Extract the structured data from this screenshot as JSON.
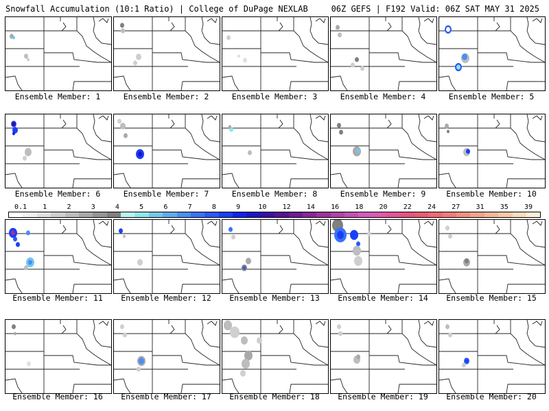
{
  "header": {
    "left": "Snowfall Accumulation (10:1 Ratio) | College of DuPage NEXLAB",
    "right": "06Z GEFS | F192 Valid: 06Z SAT MAY 31 2025"
  },
  "colorbar": {
    "labels": [
      "0.1",
      "1",
      "2",
      "3",
      "4",
      "5",
      "6",
      "7",
      "8",
      "9",
      "10",
      "12",
      "14",
      "16",
      "18",
      "20",
      "22",
      "24",
      "27",
      "31",
      "35",
      "39"
    ],
    "colors": [
      "#ffffff",
      "#f1f1f1",
      "#e1e1e1",
      "#cfcfcf",
      "#bdbdbd",
      "#a9a9a9",
      "#959595",
      "#808080",
      "#b9f2f2",
      "#8fe6ea",
      "#74c7ec",
      "#60aaf0",
      "#4b8ef4",
      "#3a72f7",
      "#2958f8",
      "#1a3ef7",
      "#0f22ee",
      "#1c14c8",
      "#3a0fa8",
      "#551491",
      "#6e1b94",
      "#862798",
      "#9c339c",
      "#b042a5",
      "#c24fb1",
      "#d35bbc",
      "#de5aae",
      "#e35597",
      "#e8527f",
      "#ec5a72",
      "#ef6a72",
      "#f07c78",
      "#f2907e",
      "#f4a487",
      "#f6b795",
      "#f8c9a5",
      "#faddbd",
      "#fcefdb"
    ]
  },
  "panels": [
    {
      "label": "Ensemble Member: 1",
      "blobs": [
        [
          9,
          28,
          3,
          "#a9a9a9"
        ],
        [
          12,
          30,
          2,
          "#74c7ec"
        ],
        [
          30,
          57,
          3,
          "#bdbdbd"
        ],
        [
          33,
          62,
          2,
          "#cfcfcf"
        ]
      ]
    },
    {
      "label": "Ensemble Member: 2",
      "blobs": [
        [
          12,
          12,
          3,
          "#808080"
        ],
        [
          13,
          20,
          3,
          "#bdbdbd"
        ],
        [
          36,
          58,
          4,
          "#cfcfcf"
        ],
        [
          31,
          67,
          3,
          "#cfcfcf"
        ]
      ]
    },
    {
      "label": "Ensemble Member: 3",
      "blobs": [
        [
          9,
          30,
          3,
          "#cfcfcf"
        ],
        [
          33,
          63,
          3,
          "#e1e1e1"
        ],
        [
          24,
          57,
          2,
          "#e1e1e1"
        ]
      ]
    },
    {
      "label": "Ensemble Member: 4",
      "blobs": [
        [
          10,
          15,
          3,
          "#a9a9a9"
        ],
        [
          13,
          26,
          3,
          "#bdbdbd"
        ],
        [
          38,
          62,
          3,
          "#808080"
        ],
        [
          32,
          70,
          3,
          "#cfcfcf"
        ],
        [
          46,
          75,
          3,
          "#cfcfcf"
        ]
      ]
    },
    {
      "label": "Ensemble Member: 5",
      "blobs": [
        [
          13,
          18,
          5,
          "#2958f8"
        ],
        [
          13,
          18,
          3,
          "#ffffff"
        ],
        [
          38,
          60,
          6,
          "#bdbdbd"
        ],
        [
          37,
          58,
          4,
          "#4b8ef4"
        ],
        [
          28,
          73,
          5,
          "#2958f8"
        ],
        [
          28,
          73,
          3,
          "#8fe6ea"
        ]
      ]
    },
    {
      "label": "Ensemble Member: 6",
      "blobs": [
        [
          12,
          14,
          4,
          "#2958f8"
        ],
        [
          12,
          14,
          3,
          "#3a0fa8"
        ],
        [
          14,
          23,
          4,
          "#1a3ef7"
        ],
        [
          12,
          28,
          2,
          "#0f22ee"
        ],
        [
          33,
          55,
          5,
          "#bdbdbd"
        ],
        [
          28,
          64,
          3,
          "#cfcfcf"
        ]
      ]
    },
    {
      "label": "Ensemble Member: 7",
      "blobs": [
        [
          8,
          10,
          3,
          "#cfcfcf"
        ],
        [
          13,
          17,
          4,
          "#bdbdbd"
        ],
        [
          17,
          31,
          3,
          "#a9a9a9"
        ],
        [
          38,
          58,
          6,
          "#1a3ef7"
        ],
        [
          38,
          58,
          3,
          "#1c14c8"
        ]
      ]
    },
    {
      "label": "Ensemble Member: 8",
      "blobs": [
        [
          13,
          22,
          3,
          "#8fe6ea"
        ],
        [
          11,
          18,
          2,
          "#a9a9a9"
        ],
        [
          40,
          56,
          3,
          "#bdbdbd"
        ]
      ]
    },
    {
      "label": "Ensemble Member: 9",
      "blobs": [
        [
          12,
          16,
          3,
          "#808080"
        ],
        [
          15,
          26,
          3,
          "#808080"
        ],
        [
          38,
          54,
          6,
          "#a9a9a9"
        ],
        [
          40,
          53,
          3,
          "#74c7ec"
        ]
      ]
    },
    {
      "label": "Ensemble Member: 10",
      "blobs": [
        [
          11,
          17,
          3,
          "#a9a9a9"
        ],
        [
          13,
          25,
          2,
          "#808080"
        ],
        [
          40,
          55,
          5,
          "#bdbdbd"
        ],
        [
          42,
          54,
          3,
          "#1a3ef7"
        ]
      ]
    },
    {
      "label": "Ensemble Member: 11",
      "blobs": [
        [
          11,
          19,
          6,
          "#1a3ef7"
        ],
        [
          11,
          19,
          3,
          "#9c339c"
        ],
        [
          33,
          19,
          3,
          "#4b8ef4"
        ],
        [
          14,
          28,
          3,
          "#2958f8"
        ],
        [
          18,
          36,
          3,
          "#1a3ef7"
        ],
        [
          36,
          62,
          6,
          "#74c7ec"
        ],
        [
          36,
          62,
          3,
          "#4b8ef4"
        ],
        [
          30,
          70,
          3,
          "#bdbdbd"
        ]
      ]
    },
    {
      "label": "Ensemble Member: 12",
      "blobs": [
        [
          10,
          16,
          3,
          "#1a3ef7"
        ],
        [
          15,
          24,
          2,
          "#bdbdbd"
        ],
        [
          38,
          62,
          4,
          "#cfcfcf"
        ]
      ]
    },
    {
      "label": "Ensemble Member: 13",
      "blobs": [
        [
          12,
          14,
          3,
          "#3a72f7"
        ],
        [
          16,
          25,
          3,
          "#cfcfcf"
        ],
        [
          38,
          60,
          4,
          "#a9a9a9"
        ],
        [
          32,
          70,
          4,
          "#808080"
        ],
        [
          32,
          70,
          2,
          "#2958f8"
        ]
      ]
    },
    {
      "label": "Ensemble Member: 14",
      "blobs": [
        [
          10,
          8,
          8,
          "#808080"
        ],
        [
          14,
          22,
          9,
          "#3a72f7"
        ],
        [
          14,
          22,
          5,
          "#1a3ef7"
        ],
        [
          34,
          22,
          6,
          "#1a3ef7"
        ],
        [
          40,
          35,
          3,
          "#2958f8"
        ],
        [
          38,
          45,
          6,
          "#bdbdbd"
        ],
        [
          40,
          60,
          6,
          "#cfcfcf"
        ],
        [
          56,
          20,
          3,
          "#cfcfcf"
        ]
      ]
    },
    {
      "label": "Ensemble Member: 15",
      "blobs": [
        [
          12,
          12,
          3,
          "#cfcfcf"
        ],
        [
          16,
          24,
          3,
          "#cfcfcf"
        ],
        [
          40,
          62,
          5,
          "#a9a9a9"
        ],
        [
          40,
          60,
          3,
          "#808080"
        ]
      ]
    },
    {
      "label": "Ensemble Member: 16",
      "blobs": [
        [
          12,
          10,
          3,
          "#808080"
        ],
        [
          14,
          20,
          2,
          "#a9a9a9"
        ],
        [
          34,
          64,
          3,
          "#e1e1e1"
        ]
      ]
    },
    {
      "label": "Ensemble Member: 17",
      "blobs": [
        [
          12,
          10,
          3,
          "#cfcfcf"
        ],
        [
          16,
          22,
          3,
          "#cfcfcf"
        ],
        [
          40,
          60,
          6,
          "#a9a9a9"
        ],
        [
          40,
          60,
          4,
          "#4b8ef4"
        ],
        [
          36,
          72,
          3,
          "#cfcfcf"
        ]
      ]
    },
    {
      "label": "Ensemble Member: 18",
      "blobs": [
        [
          8,
          8,
          6,
          "#bdbdbd"
        ],
        [
          18,
          18,
          7,
          "#cfcfcf"
        ],
        [
          32,
          30,
          5,
          "#bdbdbd"
        ],
        [
          38,
          52,
          6,
          "#a9a9a9"
        ],
        [
          34,
          64,
          6,
          "#bdbdbd"
        ],
        [
          30,
          78,
          4,
          "#cfcfcf"
        ],
        [
          54,
          30,
          4,
          "#cfcfcf"
        ]
      ]
    },
    {
      "label": "Ensemble Member: 19",
      "blobs": [
        [
          12,
          10,
          3,
          "#cfcfcf"
        ],
        [
          14,
          20,
          3,
          "#cfcfcf"
        ],
        [
          38,
          58,
          5,
          "#bdbdbd"
        ],
        [
          40,
          54,
          3,
          "#a9a9a9"
        ]
      ]
    },
    {
      "label": "Ensemble Member: 20",
      "blobs": [
        [
          12,
          10,
          3,
          "#bdbdbd"
        ],
        [
          16,
          22,
          3,
          "#cfcfcf"
        ],
        [
          40,
          60,
          4,
          "#2958f8"
        ],
        [
          40,
          60,
          2,
          "#1a3ef7"
        ],
        [
          36,
          66,
          3,
          "#cfcfcf"
        ]
      ]
    }
  ]
}
